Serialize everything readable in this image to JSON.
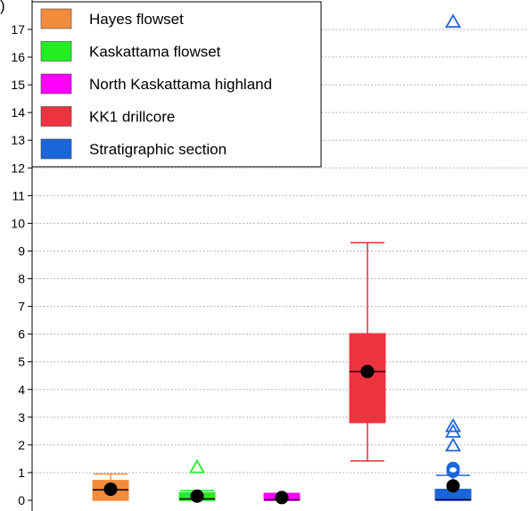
{
  "header_fragment": ")",
  "chart_data": {
    "type": "box",
    "title": "",
    "xlabel": "",
    "ylabel": "",
    "ylim": [
      0,
      17.6
    ],
    "yticks": [
      0,
      1,
      2,
      3,
      4,
      5,
      6,
      7,
      8,
      9,
      10,
      11,
      12,
      13,
      14,
      15,
      16,
      17
    ],
    "grid": "horizontal dotted",
    "legend_position": "top-left",
    "series": [
      {
        "name": "Hayes flowset",
        "color": "#F28C3C",
        "whisker_color": "#F28C3C",
        "min": 0.0,
        "q1": 0.0,
        "median": 0.38,
        "q3": 0.72,
        "max": 0.95,
        "mean": 0.4,
        "outliers": []
      },
      {
        "name": "Kaskattama flowset",
        "color": "#22EE22",
        "whisker_color": "#22EE22",
        "min": 0.0,
        "q1": 0.0,
        "median": 0.05,
        "q3": 0.28,
        "max": 0.35,
        "mean": 0.15,
        "outliers": [
          {
            "value": 1.22,
            "marker": "triangle"
          }
        ]
      },
      {
        "name": "North Kaskattama highland",
        "color": "#FF00FF",
        "whisker_color": "#FF00FF",
        "min": 0.0,
        "q1": 0.0,
        "median": 0.02,
        "q3": 0.25,
        "max": 0.25,
        "mean": 0.1,
        "outliers": []
      },
      {
        "name": "KK1 drillcore",
        "color": "#EE3340",
        "whisker_color": "#E02E3B",
        "min": 1.42,
        "q1": 2.8,
        "median": 4.65,
        "q3": 6.02,
        "max": 9.3,
        "mean": 4.65,
        "outliers": []
      },
      {
        "name": "Stratigraphic section",
        "color": "#1A66D9",
        "whisker_color": "#1A66D9",
        "min": 0.0,
        "q1": 0.0,
        "median": 0.02,
        "q3": 0.4,
        "max": 0.9,
        "mean": 0.52,
        "outliers": [
          {
            "value": 1.05,
            "marker": "circle"
          },
          {
            "value": 1.15,
            "marker": "circle"
          },
          {
            "value": 2.0,
            "marker": "triangle"
          },
          {
            "value": 2.5,
            "marker": "triangle"
          },
          {
            "value": 2.7,
            "marker": "triangle"
          },
          {
            "value": 17.3,
            "marker": "triangle"
          }
        ]
      }
    ]
  }
}
